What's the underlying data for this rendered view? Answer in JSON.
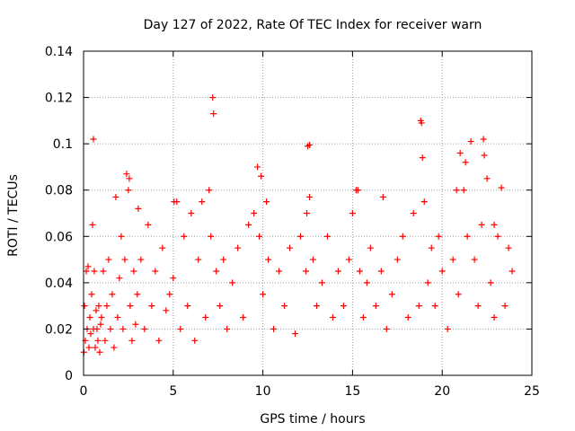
{
  "chart_data": {
    "type": "scatter",
    "title": "Day 127 of 2022, Rate Of TEC Index for receiver warn",
    "xlabel": "GPS time / hours",
    "ylabel": "ROTI / TECUs",
    "xlim": [
      0,
      25
    ],
    "ylim": [
      0,
      0.14
    ],
    "xticks": [
      0,
      5,
      10,
      15,
      20,
      25
    ],
    "yticks": [
      0,
      0.02,
      0.04,
      0.06,
      0.08,
      0.1,
      0.12,
      0.14
    ],
    "xtick_labels": [
      "0",
      "5",
      "10",
      "15",
      "20",
      "25"
    ],
    "ytick_labels": [
      "0",
      "0.02",
      "0.04",
      "0.06",
      "0.08",
      "0.1",
      "0.12",
      "0.14"
    ],
    "grid": true,
    "marker": "+",
    "series_color": "#ff0000",
    "series": [
      {
        "name": "ROTI",
        "x": [
          0.02,
          0.05,
          0.1,
          0.15,
          0.2,
          0.25,
          0.3,
          0.35,
          0.4,
          0.45,
          0.5,
          0.55,
          0.6,
          0.65,
          0.7,
          0.75,
          0.8,
          0.85,
          0.9,
          0.95,
          1.0,
          1.1,
          1.2,
          1.3,
          1.4,
          1.5,
          1.6,
          1.7,
          1.8,
          1.9,
          2.0,
          2.1,
          2.2,
          2.3,
          2.4,
          2.5,
          2.6,
          2.7,
          2.8,
          2.9,
          3.0,
          3.2,
          3.4,
          3.6,
          3.8,
          4.0,
          4.2,
          4.4,
          4.6,
          4.8,
          5.0,
          5.2,
          5.4,
          5.6,
          5.8,
          6.0,
          6.2,
          6.4,
          6.6,
          6.8,
          7.0,
          7.1,
          7.2,
          7.4,
          7.6,
          7.8,
          8.0,
          8.3,
          8.6,
          8.9,
          9.2,
          9.5,
          9.7,
          9.8,
          10.0,
          10.3,
          10.6,
          10.9,
          11.2,
          11.5,
          11.8,
          12.1,
          12.4,
          12.5,
          12.6,
          12.8,
          13.0,
          13.3,
          13.6,
          13.9,
          14.2,
          14.5,
          14.8,
          15.0,
          15.2,
          15.4,
          15.6,
          15.8,
          16.0,
          16.3,
          16.6,
          16.9,
          17.2,
          17.5,
          17.8,
          18.1,
          18.4,
          18.7,
          18.8,
          18.9,
          19.0,
          19.2,
          19.4,
          19.6,
          19.8,
          20.0,
          20.3,
          20.6,
          20.9,
          21.0,
          21.2,
          21.4,
          21.6,
          21.8,
          22.0,
          22.2,
          22.3,
          22.5,
          22.7,
          22.9,
          23.1,
          23.3,
          23.5,
          23.7,
          23.9,
          0.55,
          2.55,
          7.25,
          9.9,
          12.6,
          15.3,
          18.85,
          21.3,
          22.35,
          16.7,
          20.8,
          3.05,
          5.05,
          10.2,
          12.45,
          22.9
        ],
        "y": [
          0.01,
          0.03,
          0.015,
          0.045,
          0.02,
          0.047,
          0.012,
          0.025,
          0.018,
          0.035,
          0.065,
          0.02,
          0.045,
          0.012,
          0.028,
          0.02,
          0.015,
          0.03,
          0.01,
          0.022,
          0.025,
          0.045,
          0.015,
          0.03,
          0.05,
          0.02,
          0.035,
          0.012,
          0.077,
          0.025,
          0.042,
          0.06,
          0.02,
          0.05,
          0.087,
          0.08,
          0.03,
          0.015,
          0.045,
          0.022,
          0.035,
          0.05,
          0.02,
          0.065,
          0.03,
          0.045,
          0.015,
          0.055,
          0.028,
          0.035,
          0.042,
          0.075,
          0.02,
          0.06,
          0.03,
          0.07,
          0.015,
          0.05,
          0.075,
          0.025,
          0.08,
          0.06,
          0.12,
          0.045,
          0.03,
          0.05,
          0.02,
          0.04,
          0.055,
          0.025,
          0.065,
          0.07,
          0.09,
          0.06,
          0.035,
          0.05,
          0.02,
          0.045,
          0.03,
          0.055,
          0.018,
          0.06,
          0.045,
          0.099,
          0.077,
          0.05,
          0.03,
          0.04,
          0.06,
          0.025,
          0.045,
          0.03,
          0.05,
          0.07,
          0.08,
          0.045,
          0.025,
          0.04,
          0.055,
          0.03,
          0.045,
          0.02,
          0.035,
          0.05,
          0.06,
          0.025,
          0.07,
          0.03,
          0.11,
          0.094,
          0.075,
          0.04,
          0.055,
          0.03,
          0.06,
          0.045,
          0.02,
          0.05,
          0.035,
          0.096,
          0.08,
          0.06,
          0.101,
          0.05,
          0.03,
          0.065,
          0.102,
          0.085,
          0.04,
          0.025,
          0.06,
          0.081,
          0.03,
          0.055,
          0.045,
          0.102,
          0.085,
          0.113,
          0.086,
          0.0995,
          0.08,
          0.109,
          0.092,
          0.095,
          0.077,
          0.08,
          0.072,
          0.075,
          0.075,
          0.07,
          0.065
        ]
      }
    ]
  }
}
